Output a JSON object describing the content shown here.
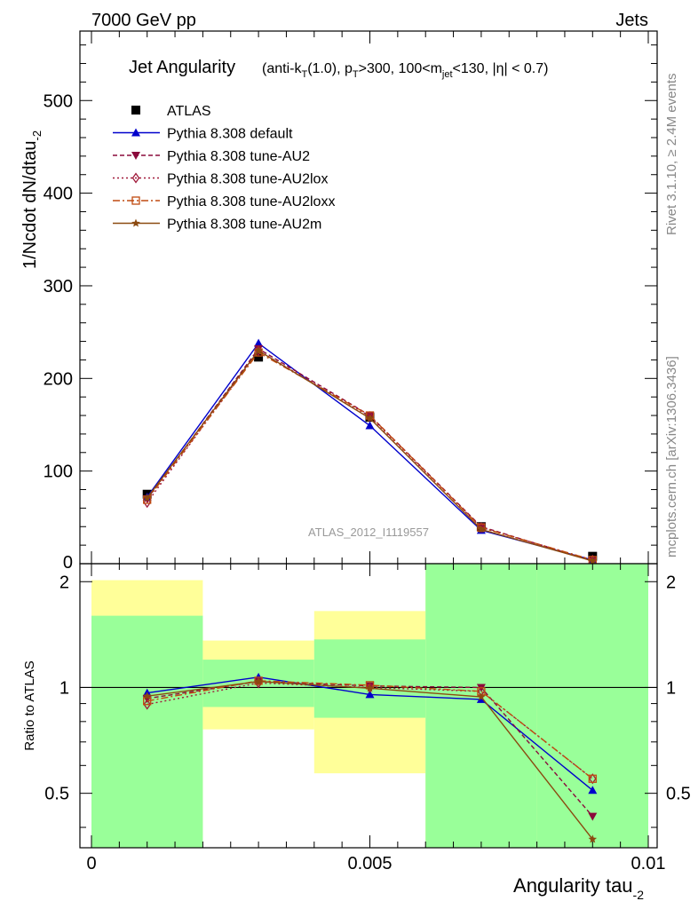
{
  "header": {
    "left": "7000 GeV pp",
    "right": "Jets"
  },
  "side_text": {
    "rivet": "Rivet 3.1.10, ≥ 2.4M events",
    "mcplots": "mcplots.cern.ch [arXiv:1306.3436]"
  },
  "title": {
    "main": "Jet Angularity",
    "cuts": "(anti-kT(1.0), pT>300, 100<mjet<130, |η| < 0.7)"
  },
  "watermark": "ATLAS_2012_I1119557",
  "colors": {
    "atlas": "#000000",
    "default": "#0000cc",
    "au2": "#8b0a3c",
    "au2lox": "#a01a3a",
    "au2loxx": "#c04a10",
    "au2m": "#8b4a10",
    "band_inner": "#99ff99",
    "band_outer": "#ffff99"
  },
  "chart_data": [
    {
      "type": "line",
      "xlabel": "Angularity tau_-2",
      "ylabel": "1/Ncdot dN/dtau_-2",
      "xlim": [
        0,
        0.01
      ],
      "ylim": [
        0,
        575
      ],
      "yticks": [
        100,
        200,
        300,
        400,
        500
      ],
      "ytick_labels": [
        "100",
        "200",
        "300",
        "400",
        "500"
      ],
      "x": [
        0.001,
        0.003,
        0.005,
        0.007,
        0.009
      ],
      "series": [
        {
          "name": "ATLAS",
          "marker": "square",
          "values": [
            75,
            223,
            158,
            40,
            8
          ]
        },
        {
          "name": "Pythia 8.308 default",
          "marker": "triangle-up",
          "dash": "solid",
          "values": [
            72,
            238,
            149,
            36,
            4
          ]
        },
        {
          "name": "Pythia 8.308 tune-AU2",
          "marker": "triangle-down",
          "dash": "dashed",
          "values": [
            70,
            232,
            160,
            40,
            3
          ]
        },
        {
          "name": "Pythia 8.308 tune-AU2lox",
          "marker": "diamond-open",
          "dash": "dotted",
          "values": [
            66,
            230,
            159,
            39,
            4
          ]
        },
        {
          "name": "Pythia 8.308 tune-AU2loxx",
          "marker": "square-open",
          "dash": "dashdot",
          "values": [
            69,
            228,
            160,
            39,
            4
          ]
        },
        {
          "name": "Pythia 8.308 tune-AU2m",
          "marker": "star",
          "dash": "solid",
          "values": [
            71,
            230,
            157,
            37,
            3
          ]
        }
      ],
      "legend": "top-left"
    },
    {
      "type": "line",
      "ylabel": "Ratio to ATLAS",
      "xlabel": "Angularity tau_-2",
      "xlim": [
        0,
        0.01
      ],
      "ylim": [
        0.35,
        2.25
      ],
      "yticks": [
        0.5,
        1,
        2
      ],
      "ytick_labels": [
        "0.5",
        "1",
        "2"
      ],
      "xticks": [
        0,
        0.005,
        0.01
      ],
      "xtick_labels": [
        "0",
        "0.005",
        "0.01"
      ],
      "bands": [
        {
          "x0": 0.0,
          "x1": 0.002,
          "inner": [
            0.35,
            1.6
          ],
          "outer": [
            0.35,
            2.02
          ]
        },
        {
          "x0": 0.002,
          "x1": 0.004,
          "inner": [
            0.88,
            1.2
          ],
          "outer": [
            0.76,
            1.36
          ]
        },
        {
          "x0": 0.004,
          "x1": 0.006,
          "inner": [
            0.82,
            1.37
          ],
          "outer": [
            0.57,
            1.65
          ]
        },
        {
          "x0": 0.006,
          "x1": 0.008,
          "inner": [
            0.35,
            2.25
          ],
          "outer": [
            0.35,
            2.25
          ]
        },
        {
          "x0": 0.008,
          "x1": 0.01,
          "inner": [
            0.35,
            2.25
          ],
          "outer": [
            0.35,
            2.25
          ]
        }
      ],
      "x": [
        0.001,
        0.003,
        0.005,
        0.007,
        0.009
      ],
      "series": [
        {
          "name": "Pythia 8.308 default",
          "values": [
            0.965,
            1.07,
            0.955,
            0.925,
            0.51
          ]
        },
        {
          "name": "Pythia 8.308 tune-AU2",
          "values": [
            0.93,
            1.04,
            1.01,
            1.0,
            0.43
          ]
        },
        {
          "name": "Pythia 8.308 tune-AU2lox",
          "values": [
            0.895,
            1.03,
            1.0,
            0.975,
            0.55
          ]
        },
        {
          "name": "Pythia 8.308 tune-AU2loxx",
          "values": [
            0.915,
            1.045,
            1.015,
            0.975,
            0.55
          ]
        },
        {
          "name": "Pythia 8.308 tune-AU2m",
          "values": [
            0.945,
            1.04,
            0.995,
            0.94,
            0.37
          ]
        }
      ]
    }
  ]
}
